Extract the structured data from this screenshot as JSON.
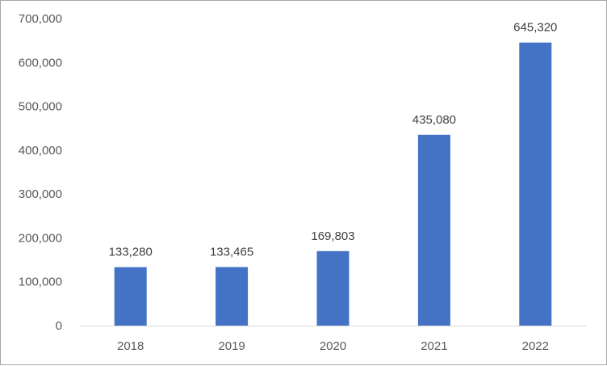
{
  "chart_data": {
    "type": "bar",
    "title": "",
    "xlabel": "",
    "ylabel": "",
    "categories": [
      "2018",
      "2019",
      "2020",
      "2021",
      "2022"
    ],
    "values": [
      133280,
      133465,
      169803,
      435080,
      645320
    ],
    "value_labels": [
      "133,280",
      "133,465",
      "169,803",
      "435,080",
      "645,320"
    ],
    "ylim": [
      0,
      700000
    ],
    "yticks": [
      0,
      100000,
      200000,
      300000,
      400000,
      500000,
      600000,
      700000
    ],
    "ytick_labels": [
      "0",
      "100,000",
      "200,000",
      "300,000",
      "400,000",
      "500,000",
      "600,000",
      "700,000"
    ],
    "grid": false,
    "legend": "none",
    "bar_color": "#4472C4",
    "axis_color": "#d9d9d9"
  }
}
